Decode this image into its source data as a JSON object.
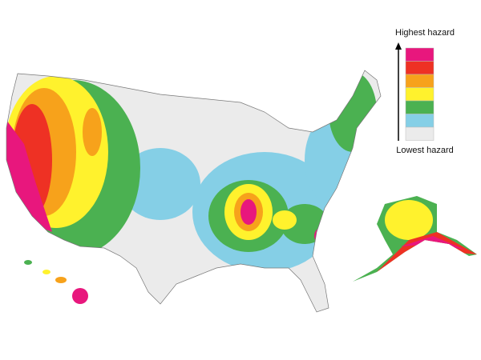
{
  "legend": {
    "top_label": "Highest hazard",
    "bottom_label": "Lowest hazard",
    "colors": [
      "#e8177d",
      "#ee3124",
      "#f7a21b",
      "#fff22d",
      "#4bb151",
      "#85cfe6",
      "#ebebeb"
    ]
  }
}
